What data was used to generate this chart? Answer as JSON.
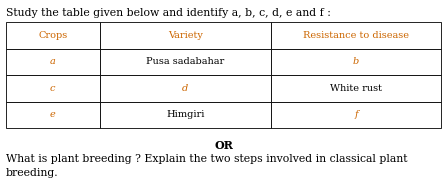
{
  "title": "Study the table given below and identify a, b, c, d, e and f :",
  "table_headers": [
    "Crops",
    "Variety",
    "Resistance to disease"
  ],
  "table_rows": [
    [
      "a",
      "Pusa sadabahar",
      "b"
    ],
    [
      "c",
      "d",
      "White rust"
    ],
    [
      "e",
      "Himgiri",
      "f"
    ]
  ],
  "or_text": "OR",
  "bottom_text_line1": "What is plant breeding ? Explain the two steps involved in classical plant",
  "bottom_text_line2": "breeding.",
  "title_color": "#000000",
  "header_color": "#cc6600",
  "cell_variable_color": "#cc6600",
  "cell_known_color": "#000000",
  "bg_color": "#ffffff",
  "figwidth": 4.47,
  "figheight": 1.93,
  "dpi": 100
}
